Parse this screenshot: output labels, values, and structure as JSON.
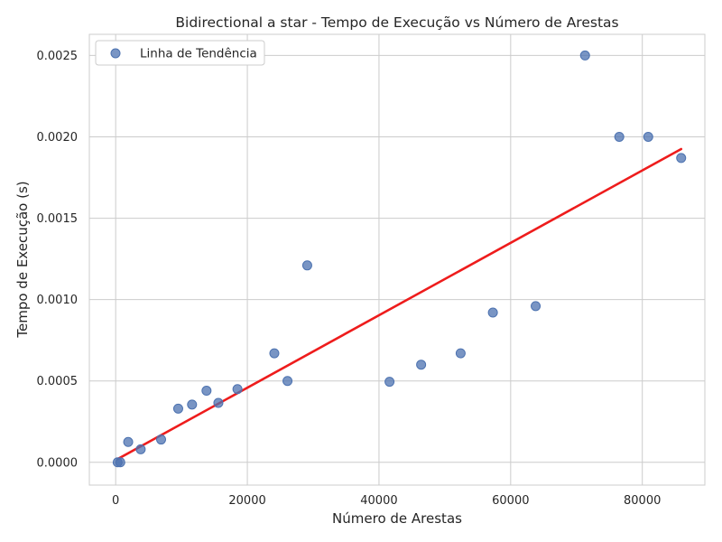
{
  "chart_data": {
    "type": "scatter",
    "title": "Bidirectional a star - Tempo de Execução vs Número de Arestas",
    "xlabel": "Número de Arestas",
    "ylabel": "Tempo de Execução (s)",
    "xlim": [
      -4000,
      89500
    ],
    "ylim": [
      -0.00014,
      0.00263
    ],
    "xticks": [
      0,
      20000,
      40000,
      60000,
      80000
    ],
    "xtick_labels": [
      "0",
      "20000",
      "40000",
      "60000",
      "80000"
    ],
    "yticks": [
      0,
      0.0005,
      0.001,
      0.0015,
      0.002,
      0.0025
    ],
    "ytick_labels": [
      "0.0000",
      "0.0005",
      "0.0010",
      "0.0015",
      "0.0020",
      "0.0025"
    ],
    "grid": true,
    "legend_position": "top-left",
    "series": [
      {
        "name": "Linha de Tendência",
        "kind": "points",
        "color": "#4c72b0",
        "x": [
          300,
          700,
          1900,
          3800,
          6900,
          9500,
          11600,
          13800,
          15600,
          18500,
          24100,
          26100,
          29100,
          41600,
          46400,
          52400,
          57300,
          63800,
          71300,
          76500,
          80900,
          85900
        ],
        "y": [
          0.0,
          0.0,
          0.000125,
          8e-05,
          0.00014,
          0.00033,
          0.000355,
          0.00044,
          0.000365,
          0.00045,
          0.00067,
          0.0005,
          0.00121,
          0.000495,
          0.0006,
          0.00067,
          0.00092,
          0.00096,
          0.0025,
          0.002,
          0.002,
          0.00187
        ]
      },
      {
        "kind": "trend-line",
        "color": "#ee1c1c",
        "x": [
          300,
          85900
        ],
        "y": [
          2e-05,
          0.001925
        ]
      }
    ]
  }
}
